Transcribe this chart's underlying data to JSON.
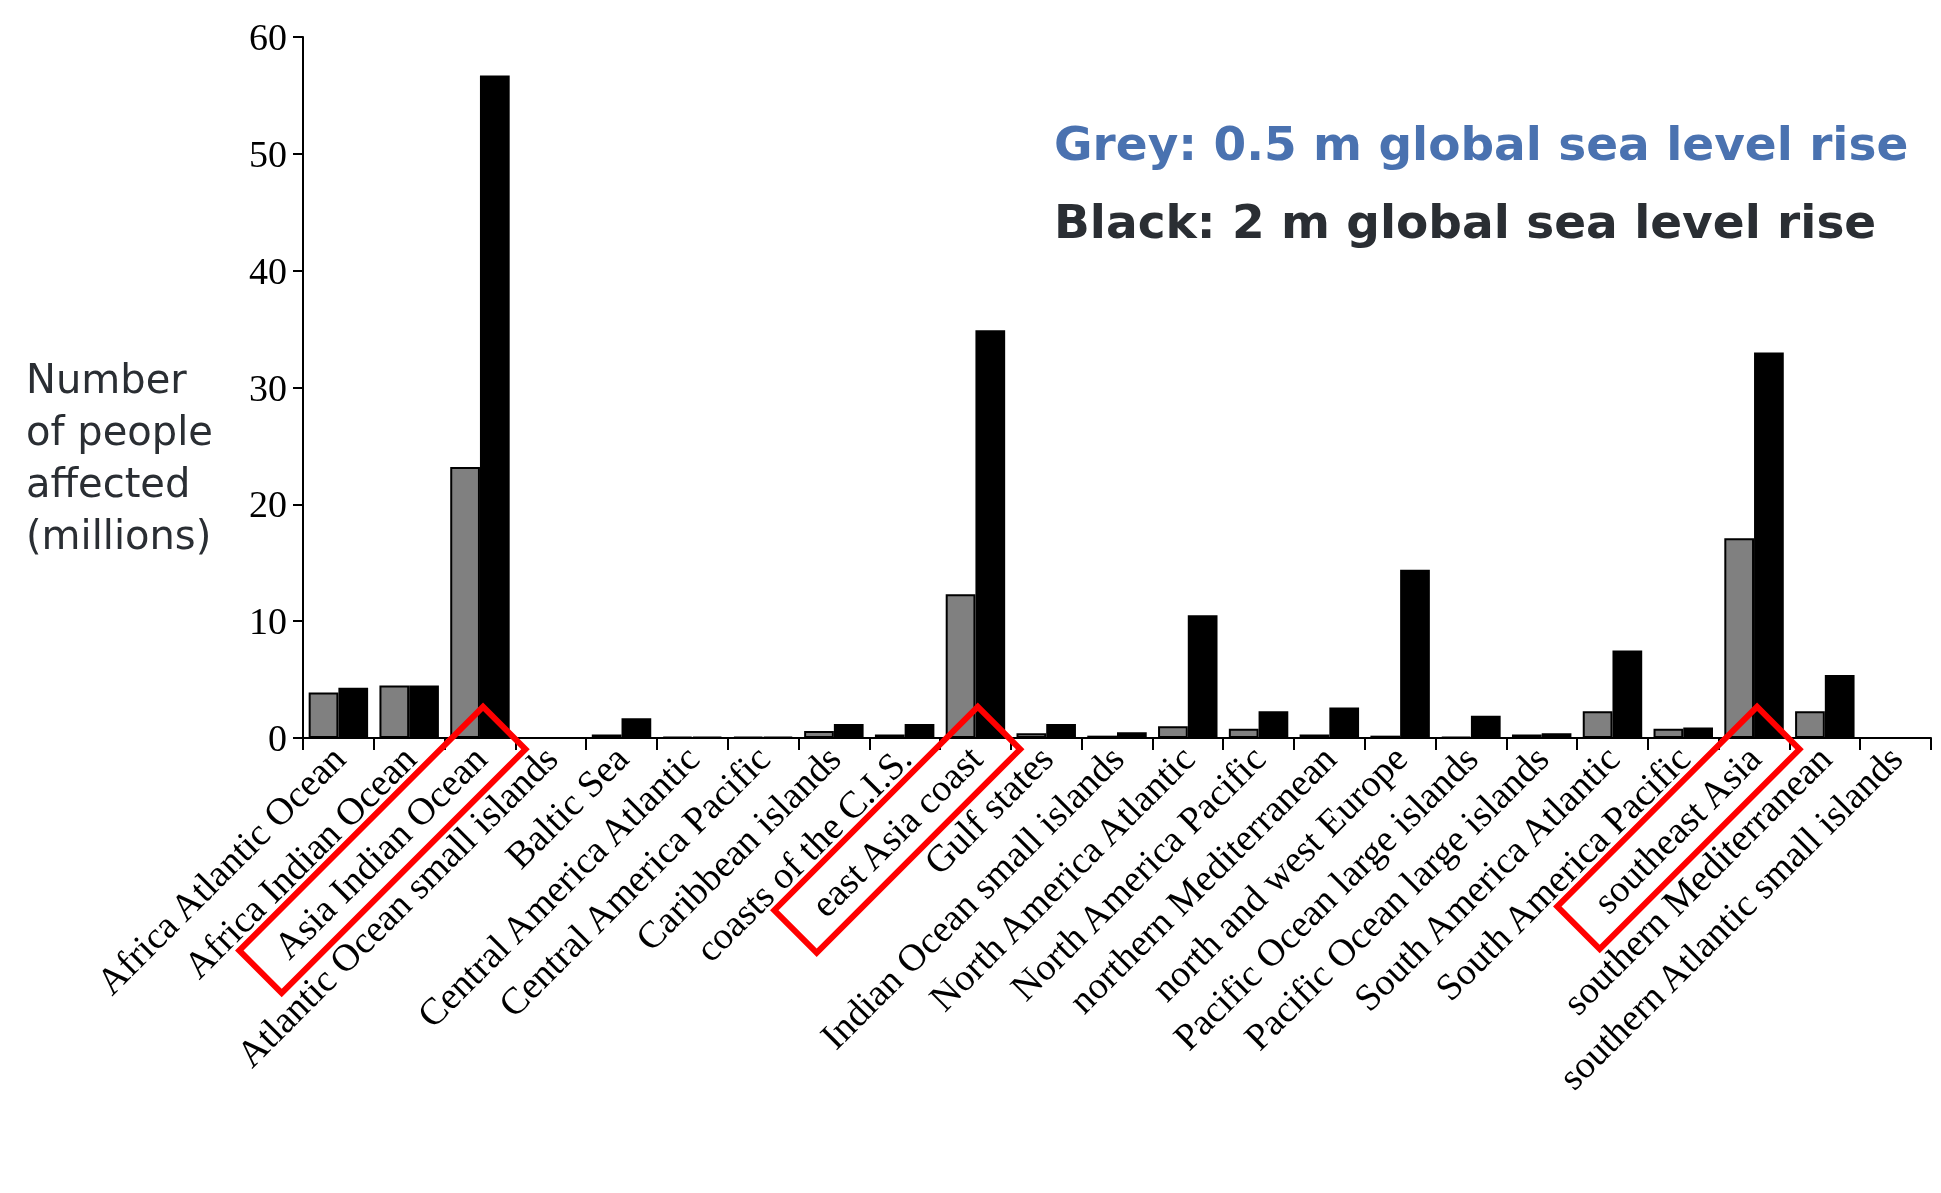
{
  "chart_data": {
    "type": "bar",
    "ylabel": "Number of people affected (millions)",
    "annotations": [
      "Grey: 0.5 m global sea level rise",
      "Black: 2 m global sea level rise"
    ],
    "categories": [
      "Africa Atlantic Ocean",
      "Africa Indian Ocean",
      "Asia Indian Ocean",
      "Atlantic Ocean small islands",
      "Baltic Sea",
      "Central America Atlantic",
      "Central America Pacific",
      "Caribbean islands",
      "coasts of the C.I.S.",
      "east Asia coast",
      "Gulf states",
      "Indian Ocean small islands",
      "North America Atlantic",
      "North America Pacific",
      "northern Mediterranean",
      "north and west Europe",
      "Pacific Ocean large islands",
      "Pacific Ocean large islands",
      "South America Atlantic",
      "South America Pacific",
      "southeast Asia",
      "southern Mediterranean",
      "southern Atlantic small islands"
    ],
    "series": [
      {
        "color": "#808080",
        "values": [
          3.9,
          4.5,
          23.2,
          0,
          0.3,
          0.1,
          0.1,
          0.6,
          0.3,
          12.3,
          0.4,
          0.2,
          1.0,
          0.8,
          0.3,
          0.2,
          0.1,
          0.3,
          2.3,
          0.8,
          17.1,
          2.3,
          0
        ]
      },
      {
        "color": "#000000",
        "values": [
          4.3,
          4.5,
          56.7,
          0,
          1.7,
          0.1,
          0.1,
          1.2,
          1.2,
          34.9,
          1.2,
          0.5,
          10.5,
          2.3,
          2.6,
          14.4,
          1.9,
          0.4,
          7.5,
          0.9,
          33.0,
          5.4,
          0
        ]
      }
    ],
    "ylim": [
      0,
      60
    ],
    "yticks": [
      0,
      10,
      20,
      30,
      40,
      50,
      60
    ],
    "grid": false
  }
}
